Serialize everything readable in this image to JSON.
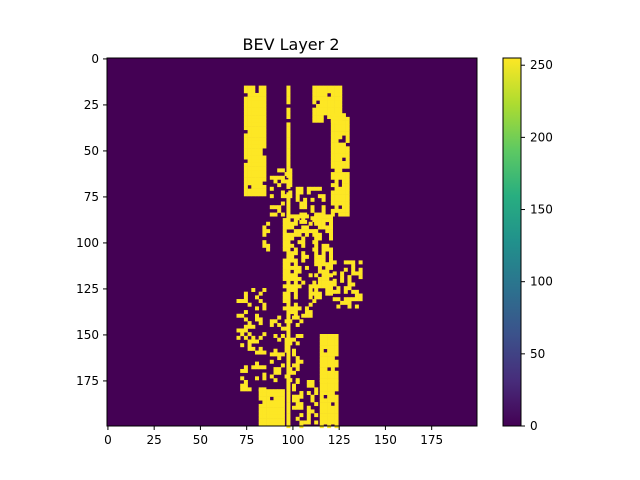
{
  "chart_data": {
    "type": "heatmap",
    "title": "BEV Layer 2",
    "xlabel": "",
    "ylabel": "",
    "grid": false,
    "legend": "colorbar-right",
    "colormap": "viridis",
    "xlim": [
      0,
      200
    ],
    "ylim": [
      200,
      0
    ],
    "x_ticks": [
      0,
      25,
      50,
      75,
      100,
      125,
      150,
      175
    ],
    "y_ticks": [
      0,
      25,
      50,
      75,
      100,
      125,
      150,
      175
    ],
    "colorbar": {
      "range": [
        0,
        255
      ],
      "ticks": [
        0,
        50,
        100,
        150,
        200,
        250
      ]
    },
    "background_value": 0,
    "foreground_value": 255,
    "description_regions": [
      {
        "x": [
          74,
          86
        ],
        "y": [
          15,
          75
        ],
        "kind": "solid"
      },
      {
        "x": [
          111,
          127
        ],
        "y": [
          15,
          35
        ],
        "kind": "solid"
      },
      {
        "x": [
          121,
          130
        ],
        "y": [
          30,
          85
        ],
        "kind": "solid"
      },
      {
        "x": [
          88,
          100
        ],
        "y": [
          60,
          85
        ],
        "kind": "sparse"
      },
      {
        "x": [
          102,
          118
        ],
        "y": [
          70,
          90
        ],
        "kind": "sparse"
      },
      {
        "x": [
          97,
          99
        ],
        "y": [
          15,
          200
        ],
        "kind": "line"
      },
      {
        "x": [
          84,
          88
        ],
        "y": [
          85,
          110
        ],
        "kind": "sparse"
      },
      {
        "x": [
          95,
          102
        ],
        "y": [
          85,
          140
        ],
        "kind": "dense"
      },
      {
        "x": [
          103,
          112
        ],
        "y": [
          85,
          140
        ],
        "kind": "sparse"
      },
      {
        "x": [
          112,
          122
        ],
        "y": [
          85,
          130
        ],
        "kind": "dense"
      },
      {
        "x": [
          122,
          138
        ],
        "y": [
          110,
          135
        ],
        "kind": "sparse"
      },
      {
        "x": [
          70,
          85
        ],
        "y": [
          125,
          160
        ],
        "kind": "sparse"
      },
      {
        "x": [
          88,
          105
        ],
        "y": [
          140,
          175
        ],
        "kind": "sparse"
      },
      {
        "x": [
          115,
          125
        ],
        "y": [
          150,
          175
        ],
        "kind": "solid"
      },
      {
        "x": [
          72,
          86
        ],
        "y": [
          165,
          185
        ],
        "kind": "sparse"
      },
      {
        "x": [
          82,
          95
        ],
        "y": [
          180,
          200
        ],
        "kind": "solid"
      },
      {
        "x": [
          115,
          124
        ],
        "y": [
          175,
          200
        ],
        "kind": "solid"
      },
      {
        "x": [
          100,
          114
        ],
        "y": [
          175,
          200
        ],
        "kind": "sparse"
      }
    ]
  },
  "colors": {
    "low": "#440154",
    "high": "#fde725"
  }
}
